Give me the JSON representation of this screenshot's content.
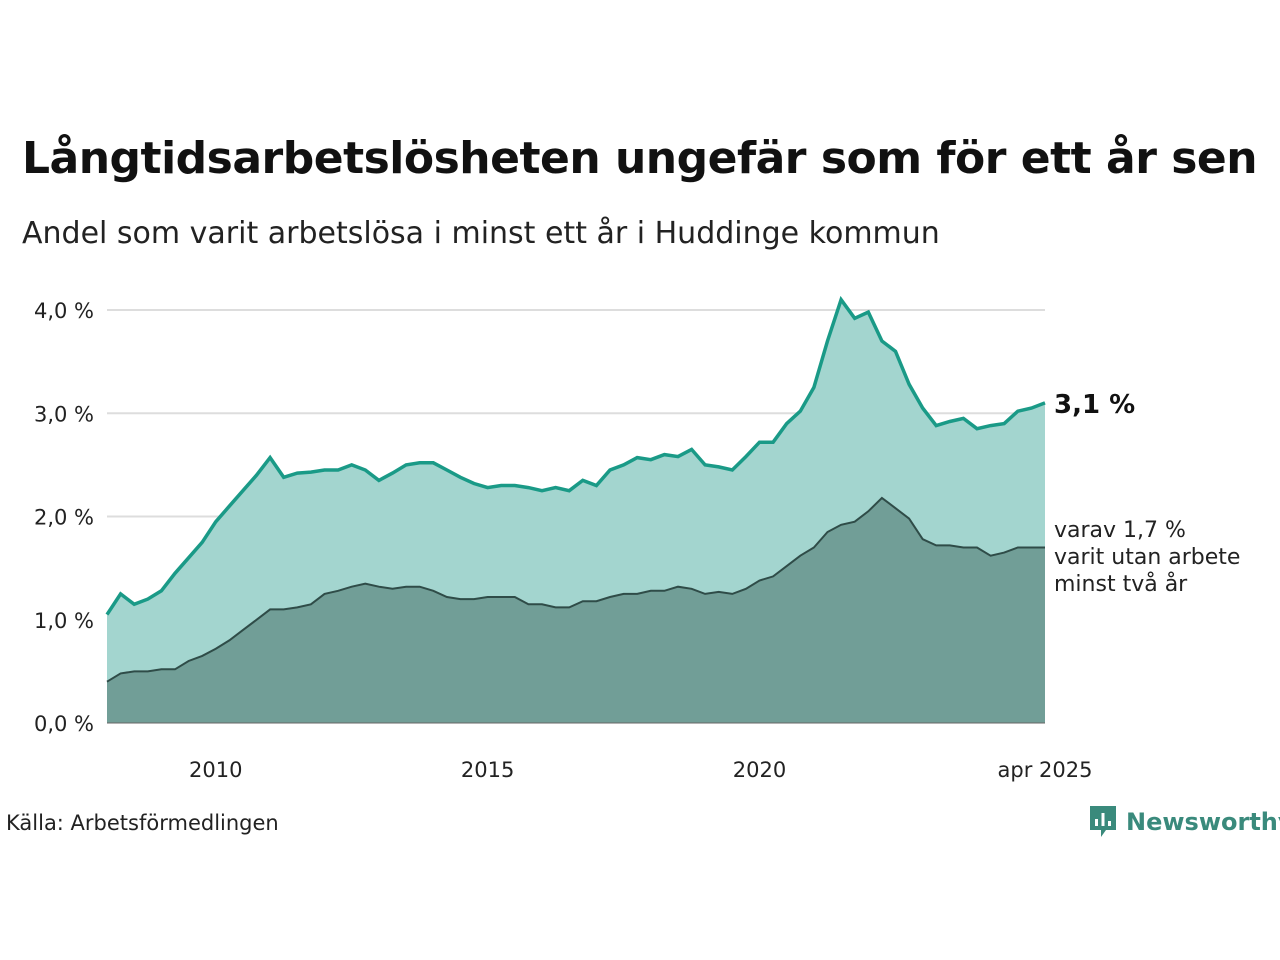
{
  "title": "Långtidsarbetslösheten ungefär som för ett år sen",
  "subtitle": "Andel som varit arbetslösa i minst ett år i Huddinge kommun",
  "source": "Källa: Arbetsförmedlingen",
  "logo_text": "Newsworthy",
  "colors": {
    "total_line": "#1a9a87",
    "total_fill": "#a3d5cf",
    "sub_fill": "#719e97",
    "sub_line": "#2f4c48",
    "grid": "#dddddd"
  },
  "chart_data": {
    "type": "area",
    "ylim": [
      0,
      4.0
    ],
    "y_ticks": [
      {
        "value": 0,
        "label": "0,0 %"
      },
      {
        "value": 1,
        "label": "1,0 %"
      },
      {
        "value": 2,
        "label": "2,0 %"
      },
      {
        "value": 3,
        "label": "3,0 %"
      },
      {
        "value": 4,
        "label": "4,0 %"
      }
    ],
    "xlim": [
      2008.0,
      2025.25
    ],
    "x_ticks": [
      {
        "value": 2010,
        "label": "2010"
      },
      {
        "value": 2015,
        "label": "2015"
      },
      {
        "value": 2020,
        "label": "2020"
      },
      {
        "value": 2025.25,
        "label": "apr 2025"
      }
    ],
    "end_label": "3,1 %",
    "sub_label_lines": [
      "varav 1,7 %",
      "varit utan arbete",
      "minst två år"
    ],
    "series": [
      {
        "key": "total",
        "x": [
          2008.0,
          2008.25,
          2008.5,
          2008.75,
          2009.0,
          2009.25,
          2009.5,
          2009.75,
          2010.0,
          2010.25,
          2010.5,
          2010.75,
          2011.0,
          2011.25,
          2011.5,
          2011.75,
          2012.0,
          2012.25,
          2012.5,
          2012.75,
          2013.0,
          2013.25,
          2013.5,
          2013.75,
          2014.0,
          2014.25,
          2014.5,
          2014.75,
          2015.0,
          2015.25,
          2015.5,
          2015.75,
          2016.0,
          2016.25,
          2016.5,
          2016.75,
          2017.0,
          2017.25,
          2017.5,
          2017.75,
          2018.0,
          2018.25,
          2018.5,
          2018.75,
          2019.0,
          2019.25,
          2019.5,
          2019.75,
          2020.0,
          2020.25,
          2020.5,
          2020.75,
          2021.0,
          2021.25,
          2021.5,
          2021.75,
          2022.0,
          2022.25,
          2022.5,
          2022.75,
          2023.0,
          2023.25,
          2023.5,
          2023.75,
          2024.0,
          2024.25,
          2024.5,
          2024.75,
          2025.0,
          2025.25
        ],
        "values": [
          1.05,
          1.25,
          1.15,
          1.2,
          1.28,
          1.45,
          1.6,
          1.75,
          1.95,
          2.1,
          2.25,
          2.4,
          2.57,
          2.38,
          2.42,
          2.43,
          2.45,
          2.45,
          2.5,
          2.45,
          2.35,
          2.42,
          2.5,
          2.52,
          2.52,
          2.45,
          2.38,
          2.32,
          2.28,
          2.3,
          2.3,
          2.28,
          2.25,
          2.28,
          2.25,
          2.35,
          2.3,
          2.45,
          2.5,
          2.57,
          2.55,
          2.6,
          2.58,
          2.65,
          2.5,
          2.48,
          2.45,
          2.58,
          2.72,
          2.72,
          2.9,
          3.02,
          3.25,
          3.7,
          4.1,
          3.92,
          3.98,
          3.7,
          3.6,
          3.28,
          3.05,
          2.88,
          2.92,
          2.95,
          2.85,
          2.88,
          2.9,
          3.02,
          3.05,
          3.1
        ]
      },
      {
        "key": "sub",
        "x": [
          2008.0,
          2008.25,
          2008.5,
          2008.75,
          2009.0,
          2009.25,
          2009.5,
          2009.75,
          2010.0,
          2010.25,
          2010.5,
          2010.75,
          2011.0,
          2011.25,
          2011.5,
          2011.75,
          2012.0,
          2012.25,
          2012.5,
          2012.75,
          2013.0,
          2013.25,
          2013.5,
          2013.75,
          2014.0,
          2014.25,
          2014.5,
          2014.75,
          2015.0,
          2015.25,
          2015.5,
          2015.75,
          2016.0,
          2016.25,
          2016.5,
          2016.75,
          2017.0,
          2017.25,
          2017.5,
          2017.75,
          2018.0,
          2018.25,
          2018.5,
          2018.75,
          2019.0,
          2019.25,
          2019.5,
          2019.75,
          2020.0,
          2020.25,
          2020.5,
          2020.75,
          2021.0,
          2021.25,
          2021.5,
          2021.75,
          2022.0,
          2022.25,
          2022.5,
          2022.75,
          2023.0,
          2023.25,
          2023.5,
          2023.75,
          2024.0,
          2024.25,
          2024.5,
          2024.75,
          2025.0,
          2025.25
        ],
        "values": [
          0.4,
          0.48,
          0.5,
          0.5,
          0.52,
          0.52,
          0.6,
          0.65,
          0.72,
          0.8,
          0.9,
          1.0,
          1.1,
          1.1,
          1.12,
          1.15,
          1.25,
          1.28,
          1.32,
          1.35,
          1.32,
          1.3,
          1.32,
          1.32,
          1.28,
          1.22,
          1.2,
          1.2,
          1.22,
          1.22,
          1.22,
          1.15,
          1.15,
          1.12,
          1.12,
          1.18,
          1.18,
          1.22,
          1.25,
          1.25,
          1.28,
          1.28,
          1.32,
          1.3,
          1.25,
          1.27,
          1.25,
          1.3,
          1.38,
          1.42,
          1.52,
          1.62,
          1.7,
          1.85,
          1.92,
          1.95,
          2.05,
          2.18,
          2.08,
          1.98,
          1.78,
          1.72,
          1.72,
          1.7,
          1.7,
          1.62,
          1.65,
          1.7,
          1.7,
          1.7
        ]
      }
    ]
  }
}
